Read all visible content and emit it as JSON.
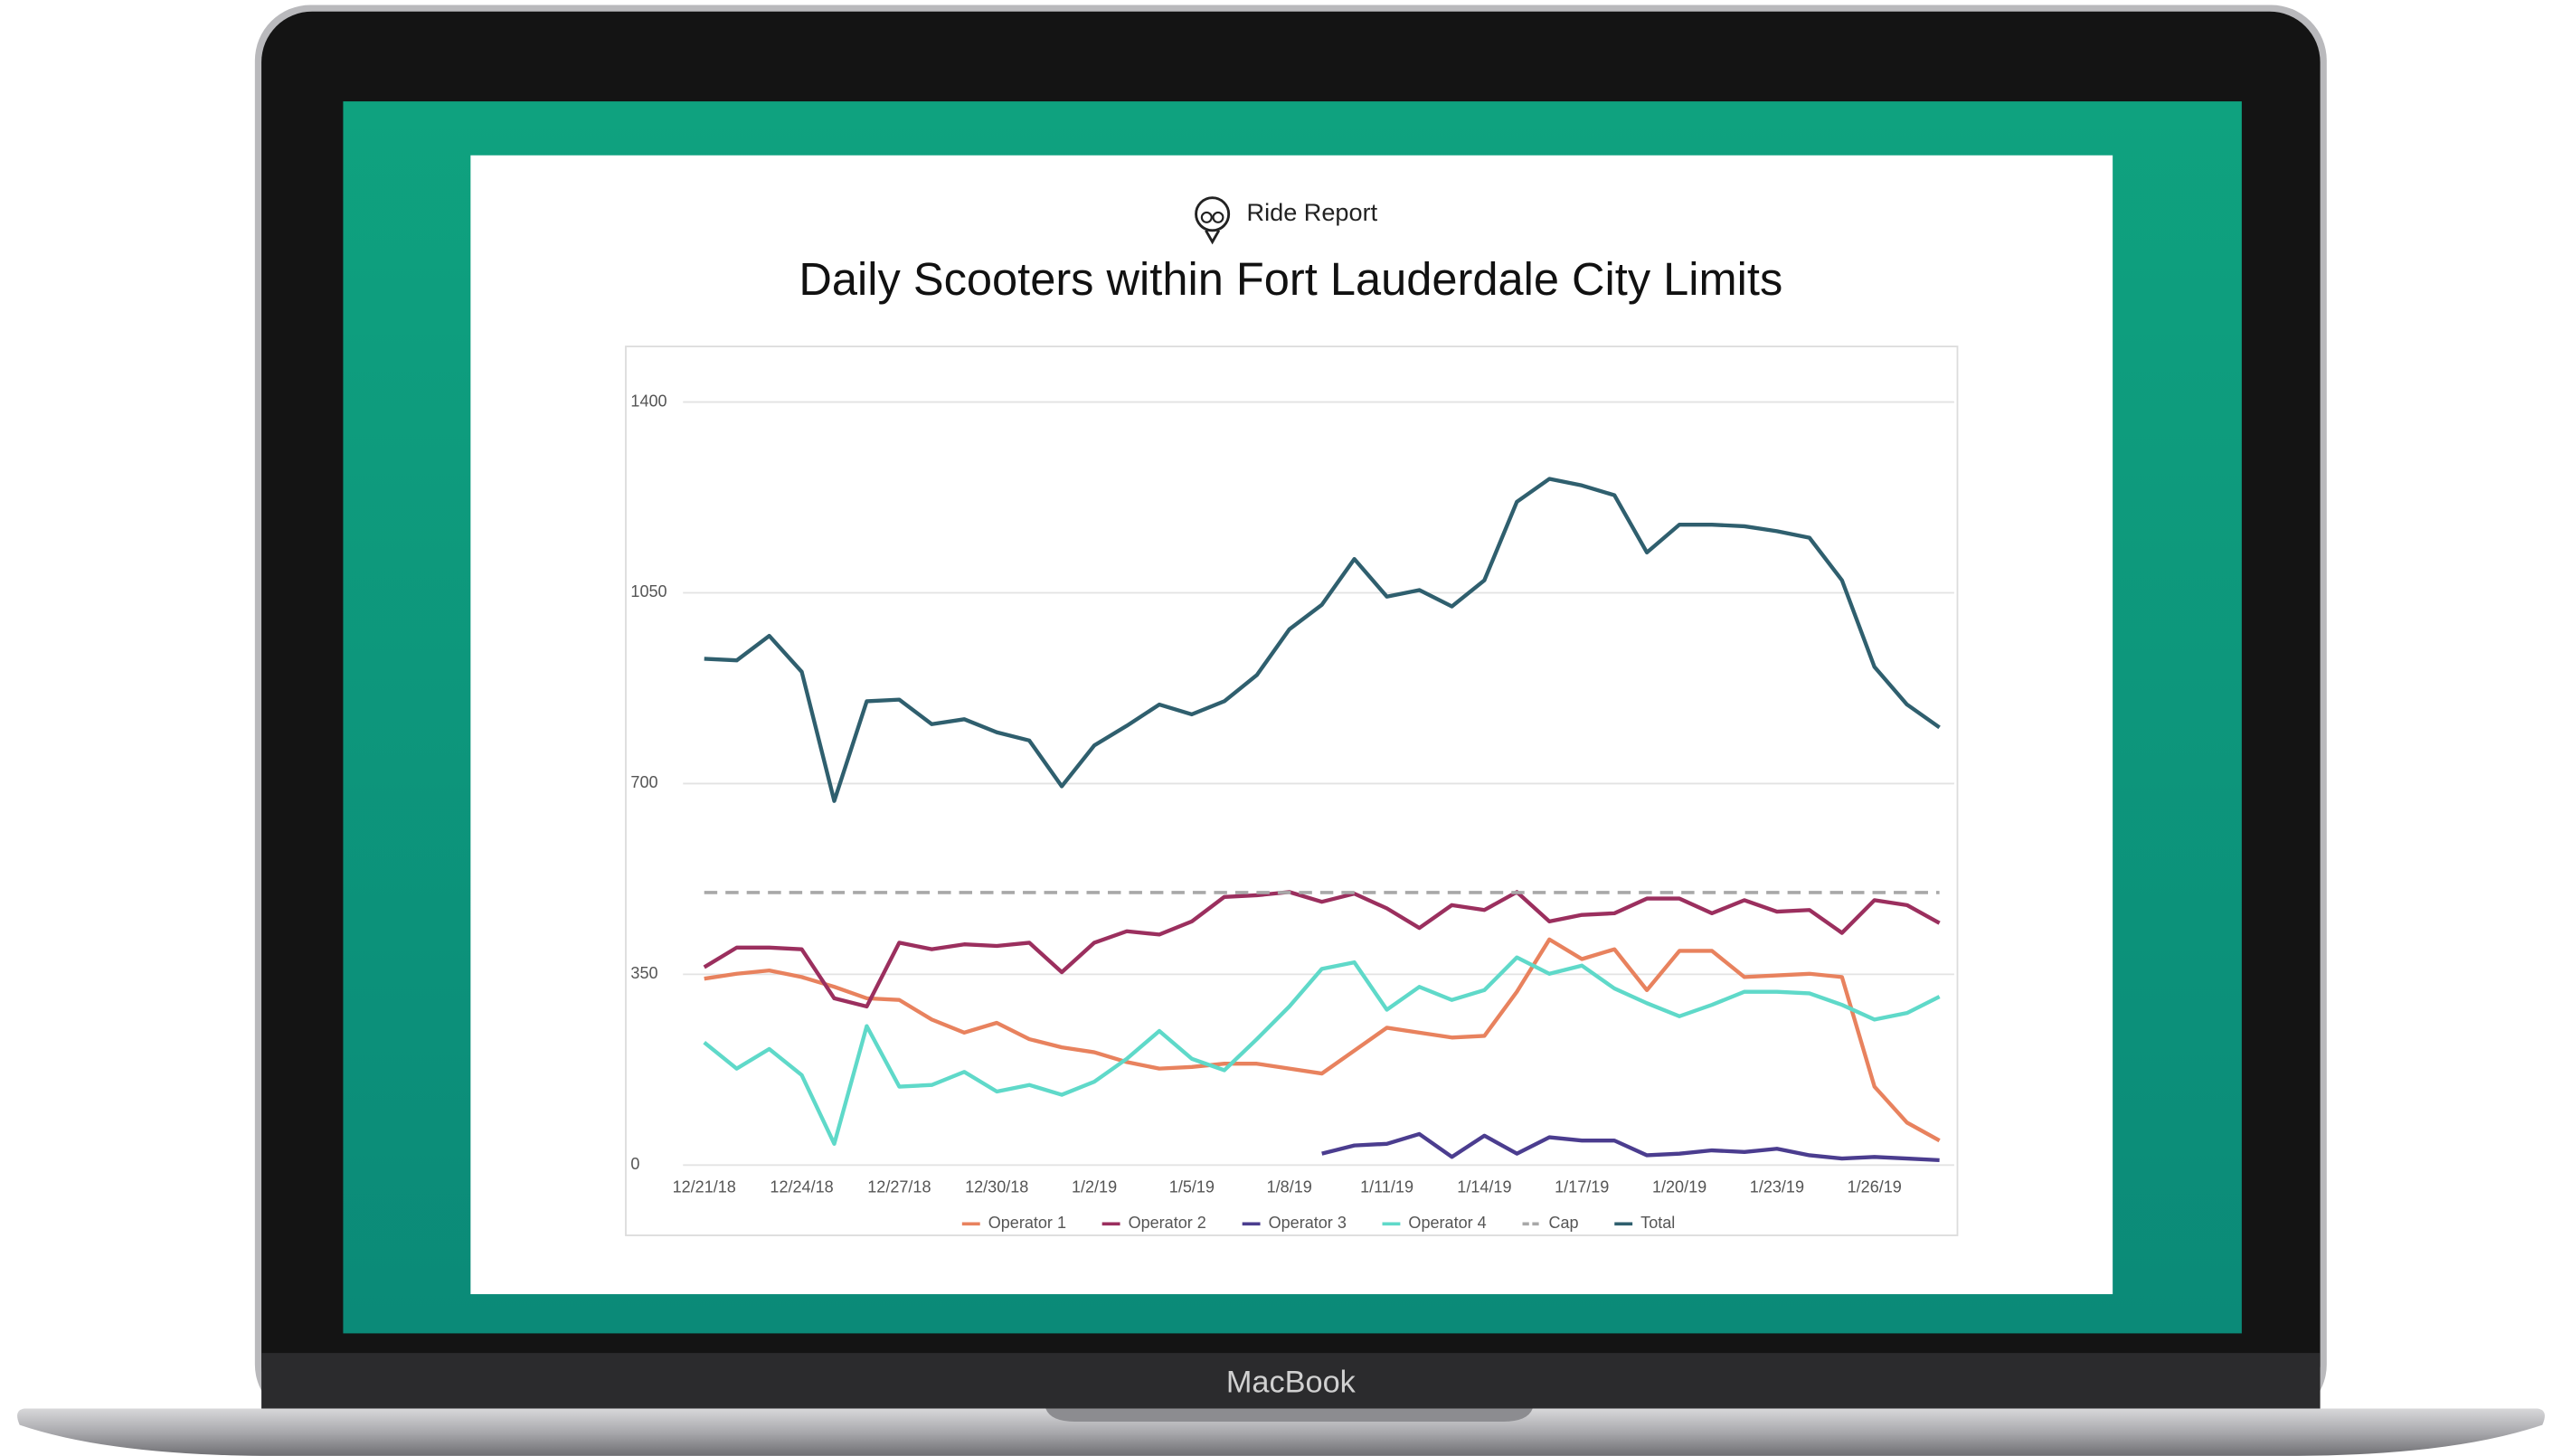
{
  "brand": "Ride Report",
  "device": "MacBook",
  "chart_data": {
    "type": "line",
    "title": "Daily Scooters within Fort Lauderdale City Limits",
    "categories": [
      "12/21/18",
      null,
      null,
      "12/24/18",
      null,
      null,
      "12/27/18",
      null,
      null,
      "12/30/18",
      null,
      null,
      "1/2/19",
      null,
      null,
      "1/5/19",
      null,
      null,
      "1/8/19",
      null,
      null,
      "1/11/19",
      null,
      null,
      "1/14/19",
      null,
      null,
      "1/17/19",
      null,
      null,
      "1/20/19",
      null,
      null,
      "1/23/19",
      null,
      null,
      "1/26/19",
      null,
      null
    ],
    "ylim": [
      0,
      1400
    ],
    "yticks": [
      0,
      350,
      700,
      1050,
      1400
    ],
    "grid": true,
    "legend": "bottom",
    "series": [
      {
        "name": "Operator 1",
        "color": "#e8825e",
        "values": [
          342,
          351,
          357,
          345,
          327,
          306,
          303,
          267,
          243,
          261,
          231,
          216,
          207,
          189,
          177,
          180,
          186,
          186,
          177,
          168,
          210,
          252,
          243,
          234,
          237,
          318,
          414,
          378,
          396,
          321,
          393,
          393,
          345,
          348,
          351,
          345,
          144,
          78,
          45
        ]
      },
      {
        "name": "Operator 2",
        "color": "#9b2f5e",
        "values": [
          363,
          399,
          399,
          396,
          306,
          291,
          408,
          396,
          405,
          402,
          408,
          354,
          408,
          429,
          423,
          447,
          492,
          495,
          501,
          483,
          498,
          471,
          435,
          477,
          468,
          501,
          447,
          459,
          462,
          489,
          489,
          462,
          486,
          465,
          468,
          426,
          486,
          477,
          444
        ]
      },
      {
        "name": "Operator 3",
        "color": "#4b3d8f",
        "values": [
          null,
          null,
          null,
          null,
          null,
          null,
          null,
          null,
          null,
          null,
          null,
          null,
          null,
          null,
          null,
          null,
          null,
          null,
          null,
          21,
          36,
          39,
          57,
          15,
          54,
          21,
          51,
          45,
          45,
          18,
          21,
          27,
          24,
          30,
          18,
          12,
          15,
          12,
          9
        ]
      },
      {
        "name": "Operator 4",
        "color": "#5fd9c9",
        "values": [
          225,
          177,
          213,
          165,
          39,
          255,
          144,
          147,
          171,
          135,
          147,
          129,
          153,
          195,
          246,
          195,
          174,
          231,
          291,
          360,
          372,
          285,
          327,
          303,
          321,
          381,
          351,
          366,
          324,
          297,
          273,
          294,
          318,
          318,
          315,
          294,
          267,
          279,
          309
        ]
      },
      {
        "name": "Cap",
        "color": "#a8a8a8",
        "dashed": true,
        "values": [
          500,
          500,
          500,
          500,
          500,
          500,
          500,
          500,
          500,
          500,
          500,
          500,
          500,
          500,
          500,
          500,
          500,
          500,
          500,
          500,
          500,
          500,
          500,
          500,
          500,
          500,
          500,
          500,
          500,
          500,
          500,
          500,
          500,
          500,
          500,
          500,
          500,
          500,
          500
        ]
      },
      {
        "name": "Total",
        "color": "#2f5f6e",
        "values": [
          929,
          926,
          971,
          905,
          668,
          851,
          854,
          809,
          818,
          794,
          779,
          695,
          770,
          806,
          845,
          827,
          851,
          899,
          983,
          1028,
          1112,
          1043,
          1055,
          1025,
          1073,
          1217,
          1259,
          1247,
          1229,
          1124,
          1175,
          1175,
          1172,
          1163,
          1151,
          1073,
          914,
          845,
          803
        ]
      }
    ]
  }
}
